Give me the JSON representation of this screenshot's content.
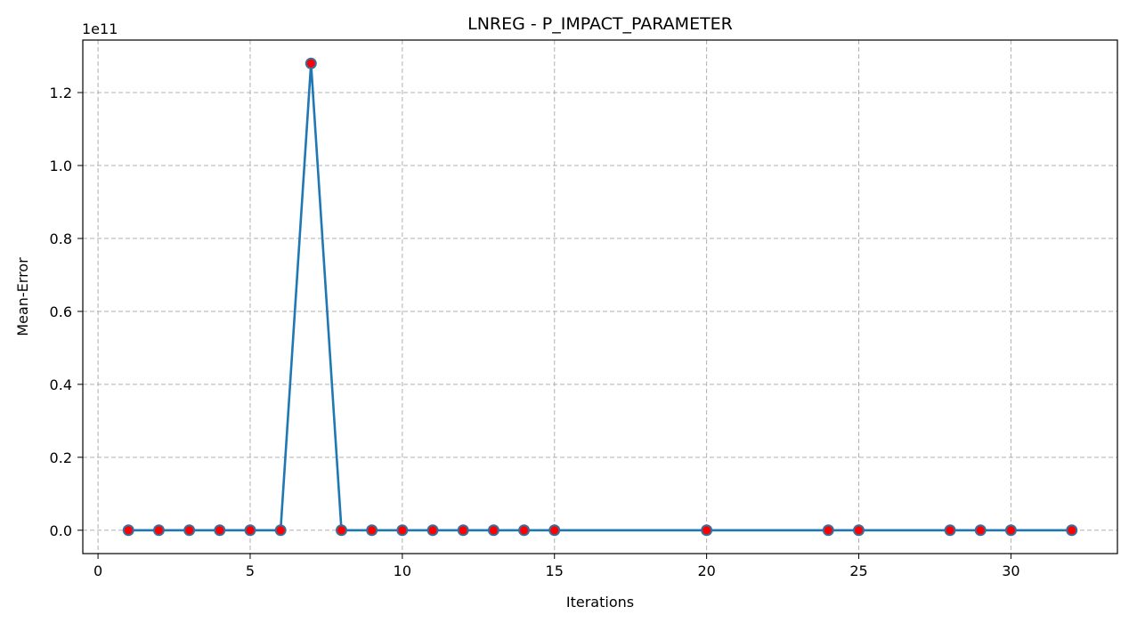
{
  "chart_data": {
    "type": "line",
    "title": "LNREG - P_IMPACT_PARAMETER",
    "xlabel": "Iterations",
    "ylabel": "Mean-Error",
    "y_offset_label": "1e11",
    "xlim": [
      -0.5,
      33.5
    ],
    "ylim": [
      -0.064,
      1.344
    ],
    "x_ticks": [
      0,
      5,
      10,
      15,
      20,
      25,
      30
    ],
    "y_ticks": [
      0.0,
      0.2,
      0.4,
      0.6,
      0.8,
      1.0,
      1.2
    ],
    "y_tick_labels": [
      "0.0",
      "0.2",
      "0.4",
      "0.6",
      "0.8",
      "1.0",
      "1.2"
    ],
    "grid": true,
    "legend": "none",
    "colors": {
      "line": "#1f77b4",
      "marker_face": "#ff0000",
      "marker_edge": "#3a6e9c"
    },
    "series": [
      {
        "x": [
          1,
          2,
          3,
          4,
          5,
          6,
          7,
          8,
          9,
          10,
          11,
          12,
          13,
          14,
          15,
          20,
          24,
          25,
          28,
          29,
          30,
          32
        ],
        "y": [
          0,
          0,
          0,
          0,
          0,
          0,
          1.28,
          0,
          0,
          0,
          0,
          0,
          0,
          0,
          0,
          0,
          0,
          0,
          0,
          0,
          0,
          0
        ]
      }
    ]
  }
}
